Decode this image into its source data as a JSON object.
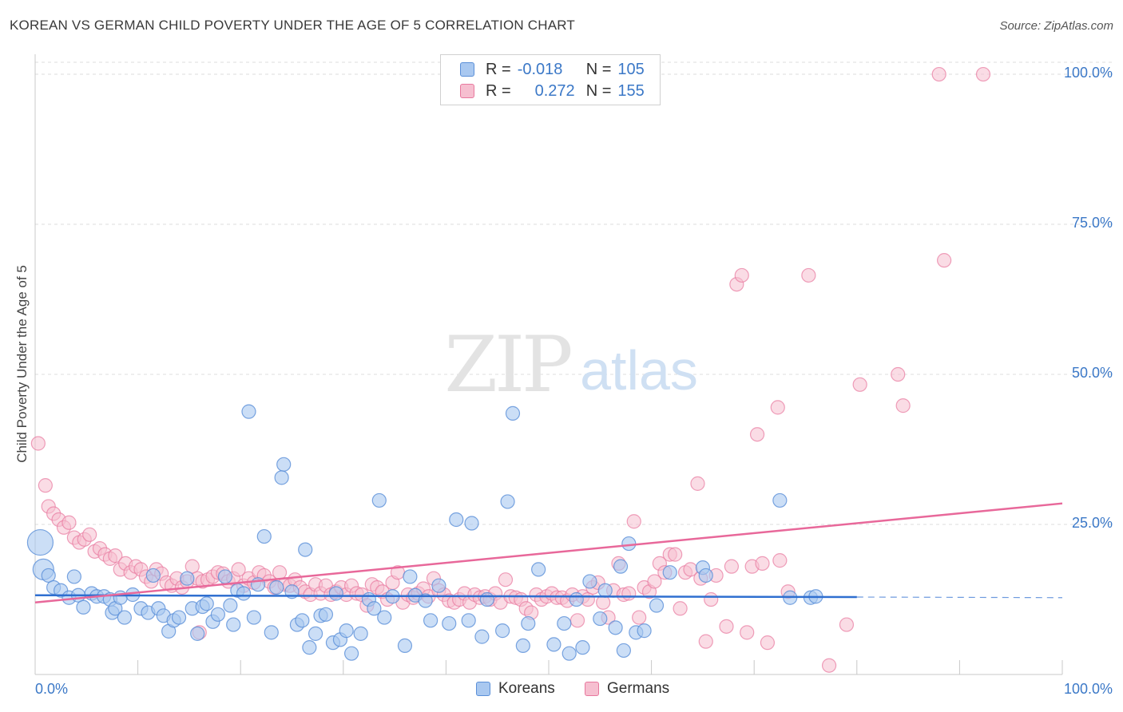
{
  "title": "KOREAN VS GERMAN CHILD POVERTY UNDER THE AGE OF 5 CORRELATION CHART",
  "source": "Source: ZipAtlas.com",
  "watermark": {
    "zip": "ZIP",
    "atlas": "atlas"
  },
  "colors": {
    "korean_fill": "#a9c8f0",
    "korean_stroke": "#5a8fd8",
    "korean_line": "#2f6fd0",
    "german_fill": "#f6bfd0",
    "german_stroke": "#e8789e",
    "german_line": "#e8689a",
    "tick_label": "#3b78c7",
    "grid": "#dddddd"
  },
  "legend": {
    "korean": {
      "r_label": "R =",
      "r_value": "-0.018",
      "n_label": "N =",
      "n_value": "105"
    },
    "german": {
      "r_label": "R =",
      "r_value": "0.272",
      "n_label": "N =",
      "n_value": "155"
    }
  },
  "bottom_legend": {
    "korean": "Koreans",
    "german": "Germans"
  },
  "chart_data": {
    "type": "scatter",
    "title": "KOREAN VS GERMAN CHILD POVERTY UNDER THE AGE OF 5 CORRELATION CHART",
    "xlabel": "",
    "ylabel": "Child Poverty Under the Age of 5",
    "xlim": [
      0,
      100
    ],
    "ylim": [
      0,
      102
    ],
    "x_tick_labels": [
      "0.0%",
      "100.0%"
    ],
    "y_tick_labels": [
      "25.0%",
      "50.0%",
      "75.0%",
      "100.0%"
    ],
    "y_ticks": [
      25,
      50,
      75,
      100
    ],
    "grid": "horizontal dashed",
    "legend_position": "top-center",
    "series": [
      {
        "name": "Koreans",
        "r": -0.018,
        "n": 105,
        "trend": {
          "x0": 0,
          "y0": 13.2,
          "x1": 80,
          "y1": 12.9,
          "dashed_to": 100,
          "y_end": 12.8
        },
        "points": [
          [
            0.5,
            22.0
          ],
          [
            0.8,
            17.5
          ],
          [
            1.3,
            16.5
          ],
          [
            1.8,
            14.5
          ],
          [
            2.5,
            14.0
          ],
          [
            3.3,
            12.8
          ],
          [
            3.8,
            16.3
          ],
          [
            4.2,
            13.2
          ],
          [
            4.7,
            11.2
          ],
          [
            5.5,
            13.5
          ],
          [
            6.0,
            13.0
          ],
          [
            6.7,
            13.0
          ],
          [
            7.3,
            12.5
          ],
          [
            7.5,
            10.3
          ],
          [
            7.8,
            11.0
          ],
          [
            8.3,
            12.8
          ],
          [
            8.7,
            9.5
          ],
          [
            9.5,
            13.3
          ],
          [
            10.3,
            11.0
          ],
          [
            11.0,
            10.3
          ],
          [
            11.5,
            16.5
          ],
          [
            12.0,
            11.0
          ],
          [
            12.5,
            9.8
          ],
          [
            13.0,
            7.2
          ],
          [
            13.5,
            9.0
          ],
          [
            14.0,
            9.5
          ],
          [
            14.8,
            16.0
          ],
          [
            15.3,
            11.0
          ],
          [
            15.8,
            6.8
          ],
          [
            16.3,
            11.3
          ],
          [
            16.7,
            11.8
          ],
          [
            17.3,
            8.8
          ],
          [
            17.8,
            10.0
          ],
          [
            18.5,
            16.3
          ],
          [
            19.0,
            11.5
          ],
          [
            19.3,
            8.3
          ],
          [
            19.7,
            14.0
          ],
          [
            20.3,
            13.5
          ],
          [
            20.8,
            43.8
          ],
          [
            21.3,
            9.5
          ],
          [
            21.7,
            15.0
          ],
          [
            22.3,
            23.0
          ],
          [
            23.0,
            7.0
          ],
          [
            23.5,
            14.5
          ],
          [
            24.2,
            35.0
          ],
          [
            24.0,
            32.8
          ],
          [
            25.0,
            13.8
          ],
          [
            25.5,
            8.3
          ],
          [
            26.0,
            9.0
          ],
          [
            26.3,
            20.8
          ],
          [
            26.7,
            4.5
          ],
          [
            27.3,
            6.8
          ],
          [
            27.8,
            9.8
          ],
          [
            28.3,
            10.0
          ],
          [
            29.0,
            5.3
          ],
          [
            29.3,
            13.5
          ],
          [
            29.7,
            5.8
          ],
          [
            30.3,
            7.3
          ],
          [
            30.8,
            3.5
          ],
          [
            31.7,
            6.8
          ],
          [
            32.5,
            12.5
          ],
          [
            33.0,
            11.0
          ],
          [
            33.5,
            29.0
          ],
          [
            34.0,
            9.5
          ],
          [
            34.8,
            13.0
          ],
          [
            36.0,
            4.8
          ],
          [
            36.5,
            16.3
          ],
          [
            37.0,
            13.2
          ],
          [
            38.0,
            12.3
          ],
          [
            38.5,
            9.0
          ],
          [
            39.3,
            14.8
          ],
          [
            40.3,
            8.5
          ],
          [
            41.0,
            25.8
          ],
          [
            42.2,
            9.0
          ],
          [
            42.5,
            25.2
          ],
          [
            43.5,
            6.3
          ],
          [
            44.0,
            12.5
          ],
          [
            45.5,
            7.3
          ],
          [
            46.0,
            28.8
          ],
          [
            46.5,
            43.5
          ],
          [
            47.5,
            4.8
          ],
          [
            48.0,
            8.5
          ],
          [
            49.0,
            17.5
          ],
          [
            50.5,
            5.0
          ],
          [
            51.5,
            8.5
          ],
          [
            52.0,
            3.5
          ],
          [
            52.7,
            12.5
          ],
          [
            53.3,
            4.5
          ],
          [
            54.0,
            15.5
          ],
          [
            55.0,
            9.3
          ],
          [
            55.5,
            14.0
          ],
          [
            56.5,
            7.8
          ],
          [
            57.0,
            18.0
          ],
          [
            57.3,
            4.0
          ],
          [
            57.8,
            21.8
          ],
          [
            58.5,
            7.0
          ],
          [
            59.3,
            7.3
          ],
          [
            60.5,
            11.5
          ],
          [
            61.8,
            17.0
          ],
          [
            65.0,
            17.8
          ],
          [
            65.3,
            16.5
          ],
          [
            72.5,
            29.0
          ],
          [
            73.5,
            12.8
          ],
          [
            75.5,
            12.8
          ],
          [
            76.0,
            13.0
          ]
        ]
      },
      {
        "name": "Germans",
        "r": 0.272,
        "n": 155,
        "trend": {
          "x0": 0,
          "y0": 12.0,
          "x1": 100,
          "y1": 28.5
        },
        "points": [
          [
            0.3,
            38.5
          ],
          [
            1.0,
            31.5
          ],
          [
            1.3,
            28.0
          ],
          [
            1.8,
            26.8
          ],
          [
            2.3,
            25.8
          ],
          [
            2.8,
            24.5
          ],
          [
            3.3,
            25.3
          ],
          [
            3.8,
            22.8
          ],
          [
            4.3,
            22.0
          ],
          [
            4.8,
            22.5
          ],
          [
            5.3,
            23.3
          ],
          [
            5.8,
            20.5
          ],
          [
            6.3,
            21.0
          ],
          [
            6.8,
            20.0
          ],
          [
            7.3,
            19.3
          ],
          [
            7.8,
            19.8
          ],
          [
            8.3,
            17.5
          ],
          [
            8.8,
            18.5
          ],
          [
            9.3,
            17.0
          ],
          [
            9.8,
            18.0
          ],
          [
            10.3,
            17.5
          ],
          [
            10.8,
            16.3
          ],
          [
            11.3,
            15.5
          ],
          [
            11.8,
            17.5
          ],
          [
            12.3,
            16.8
          ],
          [
            12.8,
            15.3
          ],
          [
            13.3,
            14.8
          ],
          [
            13.8,
            16.0
          ],
          [
            14.3,
            14.5
          ],
          [
            14.8,
            15.5
          ],
          [
            15.3,
            18.0
          ],
          [
            15.8,
            16.0
          ],
          [
            16.3,
            15.5
          ],
          [
            16.8,
            15.8
          ],
          [
            17.3,
            16.3
          ],
          [
            17.8,
            17.0
          ],
          [
            18.3,
            16.8
          ],
          [
            18.8,
            15.5
          ],
          [
            19.3,
            16.0
          ],
          [
            19.8,
            17.5
          ],
          [
            20.3,
            14.8
          ],
          [
            20.8,
            16.0
          ],
          [
            21.3,
            15.3
          ],
          [
            21.8,
            17.0
          ],
          [
            22.3,
            16.5
          ],
          [
            22.8,
            15.5
          ],
          [
            23.3,
            14.5
          ],
          [
            23.8,
            17.0
          ],
          [
            24.3,
            15.0
          ],
          [
            24.8,
            14.8
          ],
          [
            25.3,
            15.8
          ],
          [
            25.8,
            14.5
          ],
          [
            26.3,
            13.8
          ],
          [
            26.8,
            13.3
          ],
          [
            27.3,
            15.0
          ],
          [
            27.8,
            13.5
          ],
          [
            28.3,
            14.8
          ],
          [
            28.8,
            13.3
          ],
          [
            29.3,
            13.8
          ],
          [
            29.8,
            14.5
          ],
          [
            30.3,
            13.3
          ],
          [
            30.8,
            14.8
          ],
          [
            31.3,
            13.5
          ],
          [
            31.8,
            13.3
          ],
          [
            32.3,
            11.5
          ],
          [
            32.8,
            15.0
          ],
          [
            33.3,
            14.5
          ],
          [
            33.8,
            13.8
          ],
          [
            34.3,
            12.5
          ],
          [
            34.8,
            15.3
          ],
          [
            35.3,
            17.0
          ],
          [
            35.8,
            12.0
          ],
          [
            36.3,
            13.3
          ],
          [
            36.8,
            12.8
          ],
          [
            37.3,
            13.5
          ],
          [
            37.8,
            14.3
          ],
          [
            38.3,
            13.0
          ],
          [
            38.8,
            16.0
          ],
          [
            39.3,
            14.0
          ],
          [
            39.8,
            13.3
          ],
          [
            40.3,
            12.3
          ],
          [
            40.8,
            12.0
          ],
          [
            41.3,
            12.5
          ],
          [
            41.8,
            13.5
          ],
          [
            42.3,
            12.0
          ],
          [
            42.8,
            13.3
          ],
          [
            43.3,
            12.8
          ],
          [
            43.8,
            13.0
          ],
          [
            44.3,
            12.5
          ],
          [
            44.8,
            13.5
          ],
          [
            45.3,
            12.0
          ],
          [
            45.8,
            15.8
          ],
          [
            46.3,
            13.0
          ],
          [
            46.8,
            12.8
          ],
          [
            47.3,
            12.5
          ],
          [
            47.8,
            11.0
          ],
          [
            48.3,
            10.3
          ],
          [
            48.8,
            13.3
          ],
          [
            49.3,
            12.5
          ],
          [
            49.8,
            13.0
          ],
          [
            50.3,
            13.5
          ],
          [
            50.8,
            12.8
          ],
          [
            51.3,
            12.8
          ],
          [
            51.8,
            12.3
          ],
          [
            52.3,
            13.3
          ],
          [
            52.8,
            9.0
          ],
          [
            53.3,
            13.0
          ],
          [
            53.8,
            12.5
          ],
          [
            54.3,
            14.5
          ],
          [
            54.8,
            15.3
          ],
          [
            55.3,
            12.0
          ],
          [
            55.8,
            9.5
          ],
          [
            56.3,
            14.0
          ],
          [
            56.8,
            18.5
          ],
          [
            57.3,
            13.3
          ],
          [
            57.8,
            13.5
          ],
          [
            58.3,
            25.5
          ],
          [
            58.8,
            9.5
          ],
          [
            59.3,
            14.5
          ],
          [
            59.8,
            13.8
          ],
          [
            60.3,
            15.5
          ],
          [
            60.8,
            18.5
          ],
          [
            61.3,
            17.0
          ],
          [
            61.8,
            20.0
          ],
          [
            62.3,
            20.0
          ],
          [
            62.8,
            11.0
          ],
          [
            63.3,
            17.0
          ],
          [
            63.8,
            17.5
          ],
          [
            64.5,
            31.8
          ],
          [
            64.8,
            16.0
          ],
          [
            65.3,
            5.5
          ],
          [
            65.8,
            12.5
          ],
          [
            66.3,
            16.5
          ],
          [
            67.3,
            8.0
          ],
          [
            67.8,
            18.0
          ],
          [
            68.3,
            65.0
          ],
          [
            68.8,
            66.5
          ],
          [
            69.3,
            7.0
          ],
          [
            69.8,
            18.0
          ],
          [
            70.3,
            40.0
          ],
          [
            70.8,
            18.5
          ],
          [
            71.3,
            5.3
          ],
          [
            72.5,
            19.0
          ],
          [
            73.3,
            13.8
          ],
          [
            77.3,
            1.5
          ],
          [
            79.0,
            8.3
          ],
          [
            80.3,
            48.3
          ],
          [
            84.0,
            50.0
          ],
          [
            88.0,
            100.0
          ],
          [
            88.5,
            69.0
          ],
          [
            92.3,
            100.0
          ],
          [
            84.5,
            44.8
          ],
          [
            75.3,
            66.5
          ],
          [
            72.3,
            44.5
          ],
          [
            16.0,
            7.0
          ]
        ]
      }
    ]
  }
}
